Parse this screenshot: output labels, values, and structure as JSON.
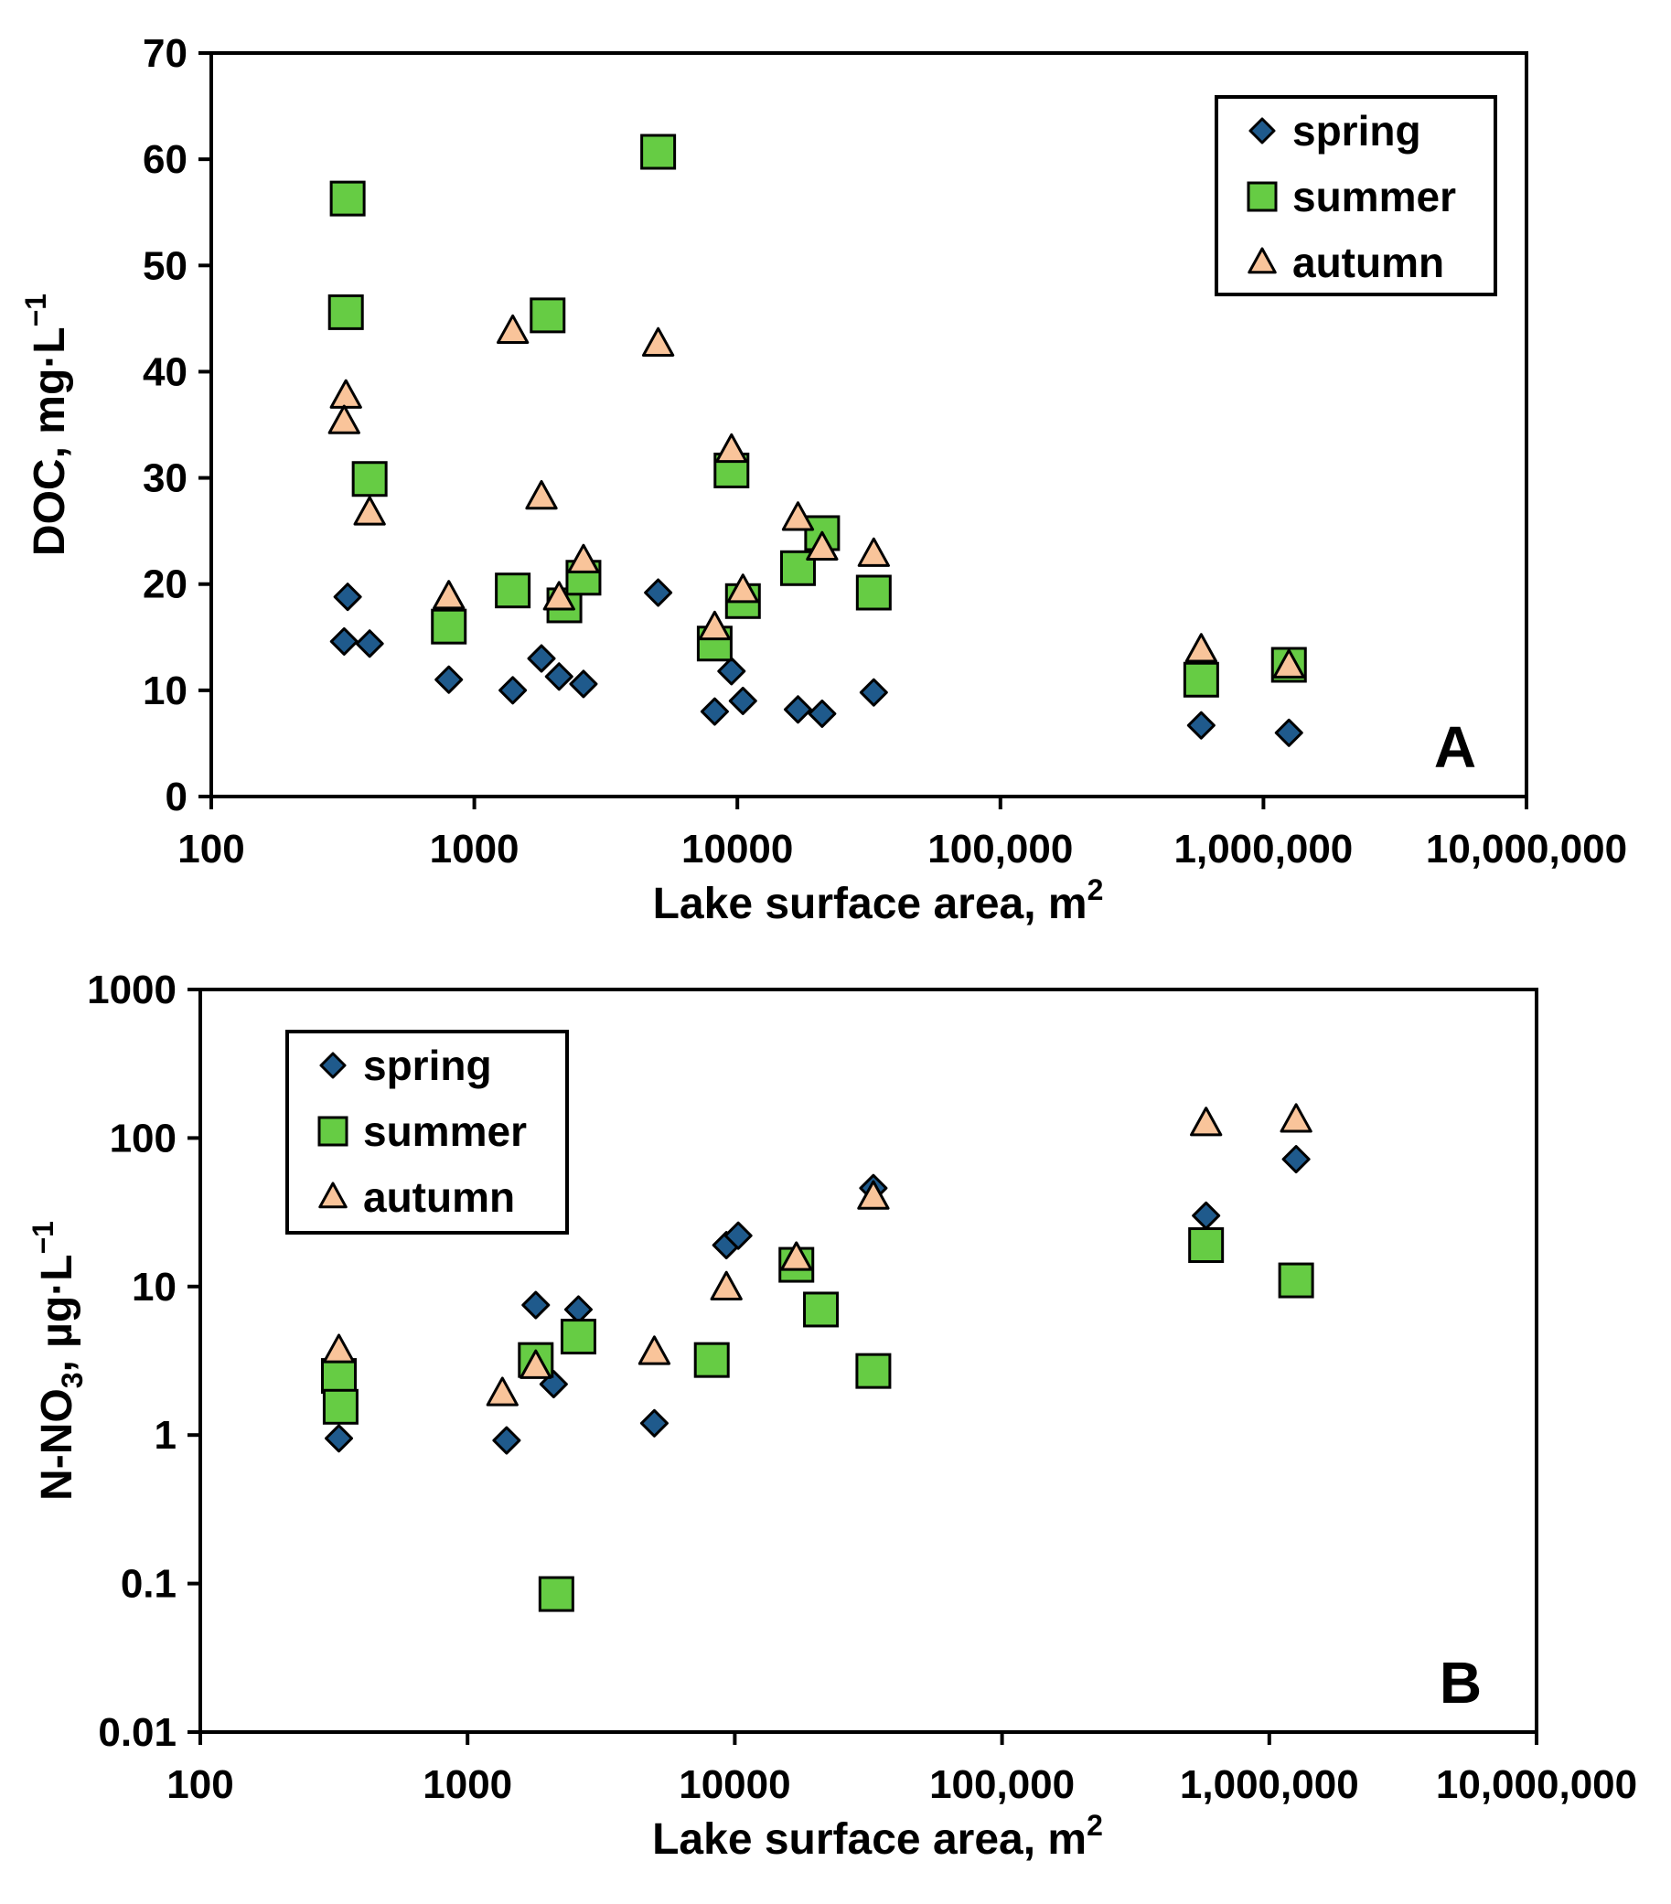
{
  "colors": {
    "spring": "#1f5a8c",
    "summer": "#66cc44",
    "autumn": "#f9c49a",
    "stroke": "#000000"
  },
  "chart_data": [
    {
      "type": "scatter",
      "panel": "A",
      "xscale": "log",
      "xlim": [
        100,
        10000000
      ],
      "ylim": [
        0,
        70
      ],
      "xlabel": "Lake surface area, m",
      "xlabel_sup": "2",
      "ylabel": "DOC, mg·L",
      "ylabel_sup": "−1",
      "xticks": [
        100,
        1000,
        10000,
        100000,
        1000000,
        10000000
      ],
      "xtick_labels": [
        "100",
        "1000",
        "10000",
        "100,000",
        "1,000,000",
        "10,000,000"
      ],
      "yticks": [
        0,
        10,
        20,
        30,
        40,
        50,
        60,
        70
      ],
      "ytick_labels": [
        "0",
        "10",
        "20",
        "30",
        "40",
        "50",
        "60",
        "70"
      ],
      "legend_position": "top-right",
      "series": [
        {
          "name": "spring",
          "marker": "diamond",
          "points": [
            [
              330,
              18.8
            ],
            [
              320,
              14.6
            ],
            [
              400,
              14.4
            ],
            [
              800,
              11
            ],
            [
              1400,
              10
            ],
            [
              1800,
              13
            ],
            [
              2100,
              11.3
            ],
            [
              2600,
              10.6
            ],
            [
              5000,
              19.2
            ],
            [
              8200,
              8
            ],
            [
              9500,
              11.8
            ],
            [
              10500,
              9
            ],
            [
              17000,
              8.2
            ],
            [
              21000,
              7.8
            ],
            [
              33000,
              9.8
            ],
            [
              580000,
              6.7
            ],
            [
              1250000,
              6
            ]
          ]
        },
        {
          "name": "summer",
          "marker": "square",
          "points": [
            [
              330,
              56.3
            ],
            [
              325,
              45.6
            ],
            [
              400,
              29.9
            ],
            [
              800,
              16
            ],
            [
              1400,
              19.4
            ],
            [
              1900,
              45.3
            ],
            [
              2200,
              18
            ],
            [
              2600,
              20.6
            ],
            [
              5000,
              60.7
            ],
            [
              8200,
              14.4
            ],
            [
              9500,
              30.7
            ],
            [
              10500,
              18.4
            ],
            [
              17000,
              21.5
            ],
            [
              21000,
              24.8
            ],
            [
              33000,
              19.2
            ],
            [
              580000,
              11
            ],
            [
              1250000,
              12.4
            ]
          ]
        },
        {
          "name": "autumn",
          "marker": "triangle",
          "points": [
            [
              325,
              37.7
            ],
            [
              320,
              35.3
            ],
            [
              400,
              26.7
            ],
            [
              800,
              18.8
            ],
            [
              1400,
              43.8
            ],
            [
              1800,
              28.2
            ],
            [
              2100,
              18.7
            ],
            [
              2600,
              22.2
            ],
            [
              5000,
              42.6
            ],
            [
              8200,
              15.9
            ],
            [
              9500,
              32.6
            ],
            [
              10500,
              19.4
            ],
            [
              17000,
              26.2
            ],
            [
              21000,
              23.4
            ],
            [
              33000,
              22.8
            ],
            [
              580000,
              13.8
            ],
            [
              1250000,
              12.3
            ]
          ]
        }
      ],
      "panel_label": "A"
    },
    {
      "type": "scatter",
      "panel": "B",
      "xscale": "log",
      "yscale": "log",
      "xlim": [
        100,
        10000000
      ],
      "ylim": [
        0.01,
        1000
      ],
      "xlabel": "Lake surface area, m",
      "xlabel_sup": "2",
      "ylabel_a": "N-NO",
      "ylabel_sub": "3",
      "ylabel_b": ", µg·L",
      "ylabel_sup": "−1",
      "xticks": [
        100,
        1000,
        10000,
        100000,
        1000000,
        10000000
      ],
      "xtick_labels": [
        "100",
        "1000",
        "10000",
        "100,000",
        "1,000,000",
        "10,000,000"
      ],
      "yticks": [
        0.01,
        0.1,
        1,
        10,
        100,
        1000
      ],
      "ytick_labels": [
        "0.01",
        "0.1",
        "1",
        "10",
        "100",
        "1000"
      ],
      "legend_position": "top-left",
      "series": [
        {
          "name": "spring",
          "marker": "diamond",
          "points": [
            [
              330,
              0.95
            ],
            [
              1400,
              0.92
            ],
            [
              1800,
              7.5
            ],
            [
              2100,
              2.2
            ],
            [
              2600,
              7
            ],
            [
              5000,
              1.2
            ],
            [
              9300,
              19
            ],
            [
              10300,
              22
            ],
            [
              33000,
              46
            ],
            [
              580000,
              30
            ],
            [
              1260000,
              72
            ]
          ]
        },
        {
          "name": "summer",
          "marker": "square",
          "points": [
            [
              330,
              2.5
            ],
            [
              335,
              1.55
            ],
            [
              1800,
              3.2
            ],
            [
              2150,
              0.085
            ],
            [
              2600,
              4.6
            ],
            [
              8200,
              3.2
            ],
            [
              17000,
              14
            ],
            [
              21000,
              7
            ],
            [
              33000,
              2.7
            ],
            [
              580000,
              19
            ],
            [
              1260000,
              11
            ]
          ]
        },
        {
          "name": "autumn",
          "marker": "triangle",
          "points": [
            [
              330,
              3.7
            ],
            [
              1350,
              1.9
            ],
            [
              1800,
              2.9
            ],
            [
              5000,
              3.6
            ],
            [
              9300,
              9.8
            ],
            [
              17000,
              15.5
            ],
            [
              33000,
              40
            ],
            [
              580000,
              125
            ],
            [
              1260000,
              132
            ]
          ]
        }
      ],
      "panel_label": "B"
    }
  ]
}
